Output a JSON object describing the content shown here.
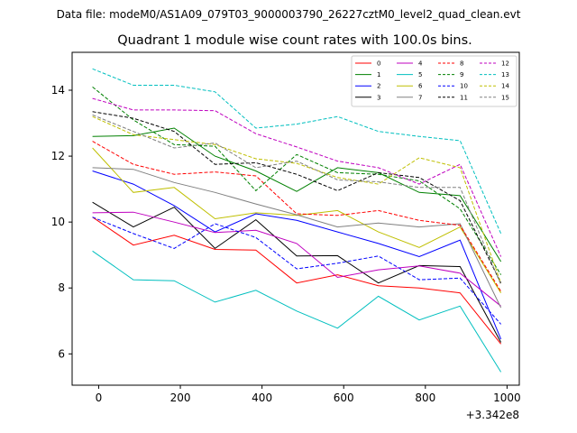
{
  "suptitle": "Data file: modeM0/AS1A09_079T03_9000003790_26227cztM0_level2_quad_clean.evt",
  "chart_data": {
    "type": "line",
    "title": "Quadrant 1 module wise count rates with 100.0s bins.",
    "xlabel": "",
    "ylabel": "",
    "x_offset_label": "+3.342e8",
    "xlim": [
      -65,
      1030
    ],
    "ylim": [
      5.05,
      15.15
    ],
    "xticks": [
      0,
      200,
      400,
      600,
      800,
      1000
    ],
    "yticks": [
      6,
      8,
      10,
      12,
      14
    ],
    "grid": false,
    "legend_position": "top-right",
    "x": [
      -15,
      85,
      185,
      285,
      385,
      485,
      585,
      685,
      785,
      885,
      985
    ],
    "series": [
      {
        "name": "0",
        "color": "#ff0000",
        "dash": "solid",
        "values": [
          10.15,
          9.3,
          9.6,
          9.17,
          9.15,
          8.15,
          8.4,
          8.07,
          8.0,
          7.85,
          6.3
        ]
      },
      {
        "name": "1",
        "color": "#008000",
        "dash": "solid",
        "values": [
          12.6,
          12.62,
          12.85,
          12.0,
          11.55,
          10.93,
          11.65,
          11.5,
          10.9,
          10.8,
          8.8
        ]
      },
      {
        "name": "2",
        "color": "#0000ff",
        "dash": "solid",
        "values": [
          11.55,
          11.15,
          10.5,
          9.7,
          10.25,
          10.05,
          9.7,
          9.35,
          8.95,
          9.45,
          6.45
        ]
      },
      {
        "name": "3",
        "color": "#000000",
        "dash": "solid",
        "values": [
          10.6,
          9.85,
          10.45,
          9.2,
          10.07,
          8.97,
          8.98,
          8.15,
          8.68,
          8.65,
          6.35
        ]
      },
      {
        "name": "4",
        "color": "#bf00bf",
        "dash": "solid",
        "values": [
          10.28,
          10.3,
          10.0,
          9.68,
          9.75,
          9.35,
          8.32,
          8.55,
          8.67,
          8.45,
          7.45
        ]
      },
      {
        "name": "5",
        "color": "#00bfbf",
        "dash": "solid",
        "values": [
          9.12,
          8.25,
          8.22,
          7.57,
          7.93,
          7.3,
          6.78,
          7.75,
          7.03,
          7.45,
          5.45
        ]
      },
      {
        "name": "6",
        "color": "#bfbf00",
        "dash": "solid",
        "values": [
          12.25,
          10.9,
          11.05,
          10.1,
          10.28,
          10.2,
          10.35,
          9.7,
          9.23,
          9.85,
          7.85
        ]
      },
      {
        "name": "7",
        "color": "#808080",
        "dash": "solid",
        "values": [
          11.65,
          11.6,
          11.2,
          10.9,
          10.55,
          10.22,
          9.85,
          9.97,
          9.85,
          9.95,
          7.4
        ]
      },
      {
        "name": "8",
        "color": "#ff0000",
        "dash": "dashed",
        "values": [
          12.45,
          11.75,
          11.45,
          11.52,
          11.4,
          10.25,
          10.2,
          10.35,
          10.05,
          9.9,
          7.9
        ]
      },
      {
        "name": "9",
        "color": "#008000",
        "dash": "dashed",
        "values": [
          14.1,
          13.1,
          12.35,
          12.3,
          10.95,
          12.05,
          11.5,
          11.45,
          11.25,
          10.4,
          8.4
        ]
      },
      {
        "name": "10",
        "color": "#0000ff",
        "dash": "dashed",
        "values": [
          10.15,
          9.65,
          9.2,
          9.95,
          9.53,
          8.58,
          8.75,
          8.97,
          8.25,
          8.3,
          6.9
        ]
      },
      {
        "name": "11",
        "color": "#000000",
        "dash": "dashed",
        "values": [
          13.35,
          13.15,
          12.75,
          11.75,
          11.8,
          11.45,
          10.95,
          11.5,
          11.35,
          10.65,
          8.15
        ]
      },
      {
        "name": "12",
        "color": "#bf00bf",
        "dash": "dashed",
        "values": [
          13.75,
          13.4,
          13.4,
          13.38,
          12.68,
          12.28,
          11.85,
          11.65,
          11.15,
          11.75,
          8.95
        ]
      },
      {
        "name": "13",
        "color": "#00bfbf",
        "dash": "dashed",
        "values": [
          14.65,
          14.15,
          14.15,
          13.95,
          12.85,
          12.97,
          13.2,
          12.75,
          12.6,
          12.47,
          9.65
        ]
      },
      {
        "name": "14",
        "color": "#bfbf00",
        "dash": "dashed",
        "values": [
          13.2,
          12.65,
          12.5,
          12.35,
          11.92,
          11.78,
          11.35,
          11.15,
          11.95,
          11.65,
          8.15
        ]
      },
      {
        "name": "15",
        "color": "#808080",
        "dash": "dashed",
        "values": [
          13.25,
          12.75,
          12.25,
          12.4,
          11.65,
          11.85,
          11.28,
          11.22,
          11.05,
          11.05,
          8.1
        ]
      }
    ]
  }
}
